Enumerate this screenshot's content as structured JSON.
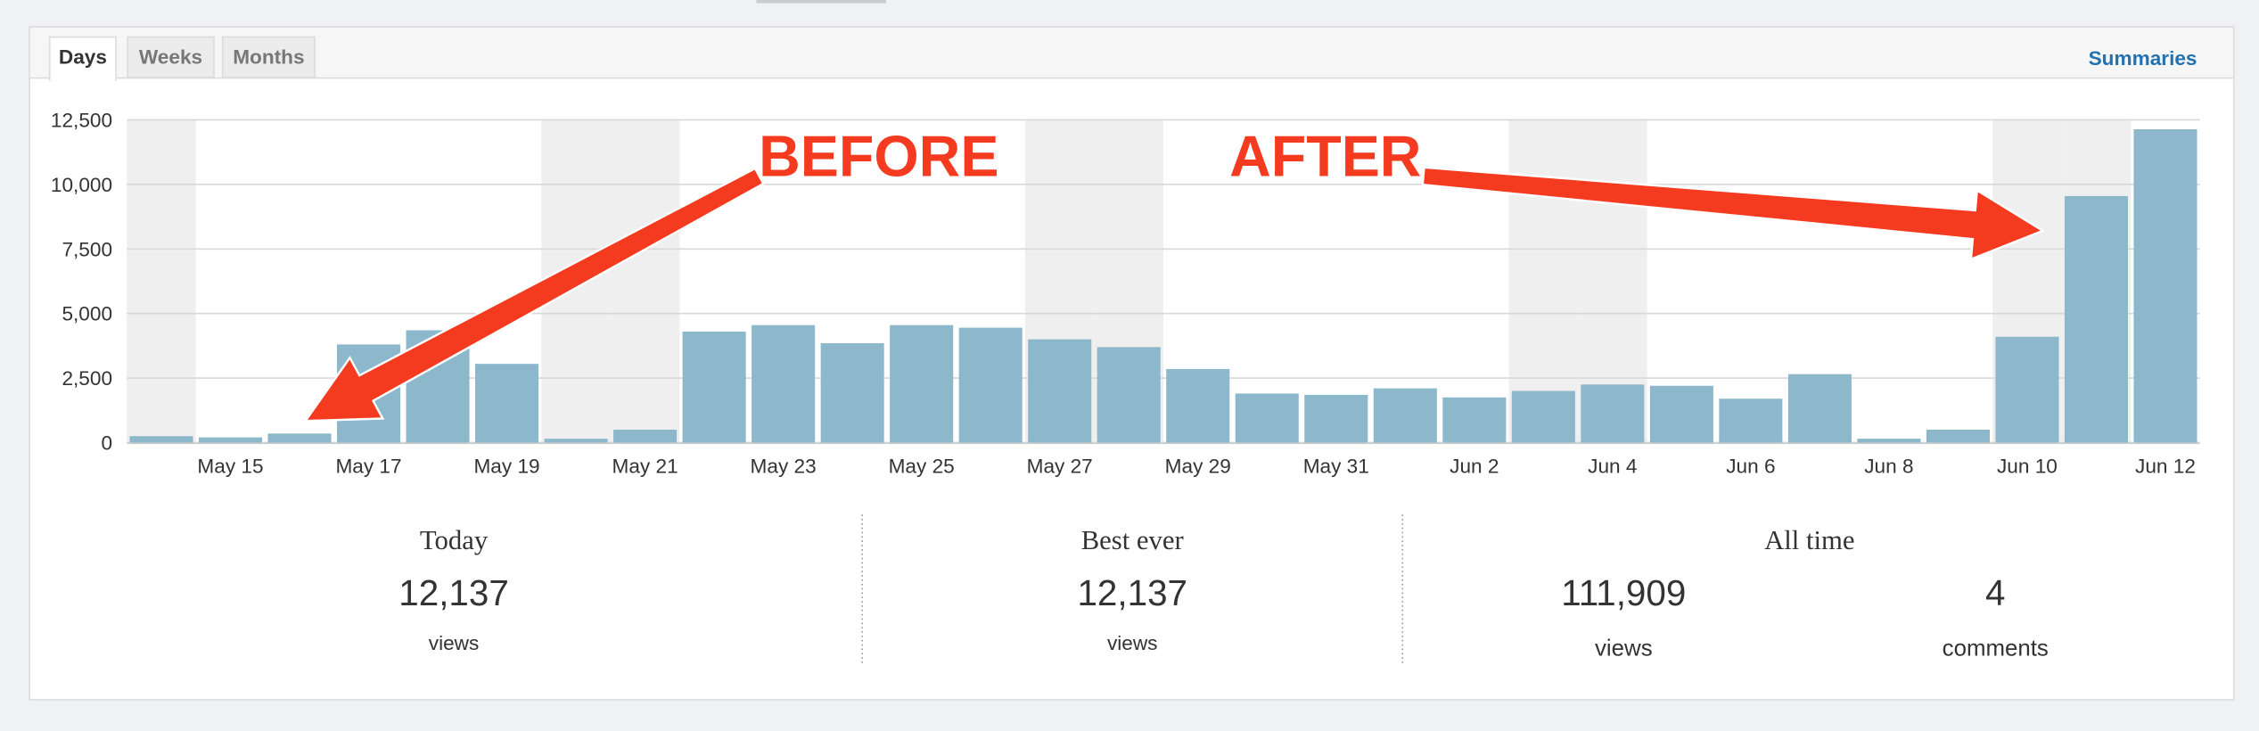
{
  "tabs": [
    "Days",
    "Weeks",
    "Months"
  ],
  "summaries_link": "Summaries",
  "chart_data": {
    "type": "bar",
    "categories": [
      null,
      "May 15",
      null,
      "May 17",
      null,
      "May 19",
      null,
      "May 21",
      null,
      "May 23",
      null,
      "May 25",
      null,
      "May 27",
      null,
      "May 29",
      null,
      "May 31",
      null,
      "Jun 2",
      null,
      "Jun 4",
      null,
      "Jun 6",
      null,
      "Jun 8",
      null,
      "Jun 10",
      null,
      "Jun 12"
    ],
    "values": [
      250,
      200,
      350,
      3800,
      4350,
      3050,
      150,
      500,
      4300,
      4550,
      3850,
      4550,
      4450,
      4000,
      3700,
      2850,
      1900,
      1850,
      2100,
      1750,
      2000,
      2250,
      2200,
      1700,
      2650,
      150,
      500,
      4100,
      9550,
      12137
    ],
    "color": "#8db8cc",
    "ylim": [
      0,
      12500
    ],
    "yticks": [
      0,
      {
        "value": 2500,
        "label": "2,500"
      },
      {
        "value": 5000,
        "label": "5,000"
      },
      {
        "value": 7500,
        "label": "7,500"
      },
      {
        "value": 10000,
        "label": "10,000"
      },
      {
        "value": 12500,
        "label": "12,500"
      }
    ],
    "grid": true,
    "annotations": [
      "BEFORE",
      "AFTER"
    ]
  },
  "stats": {
    "today": {
      "title": "Today",
      "value": "12,137",
      "unit": "views"
    },
    "best_ever": {
      "title": "Best ever",
      "value": "12,137",
      "unit": "views"
    },
    "all_time": {
      "title": "All time",
      "items": [
        {
          "value": "111,909",
          "unit": "views"
        },
        {
          "value": "4",
          "unit": "comments"
        }
      ]
    }
  }
}
